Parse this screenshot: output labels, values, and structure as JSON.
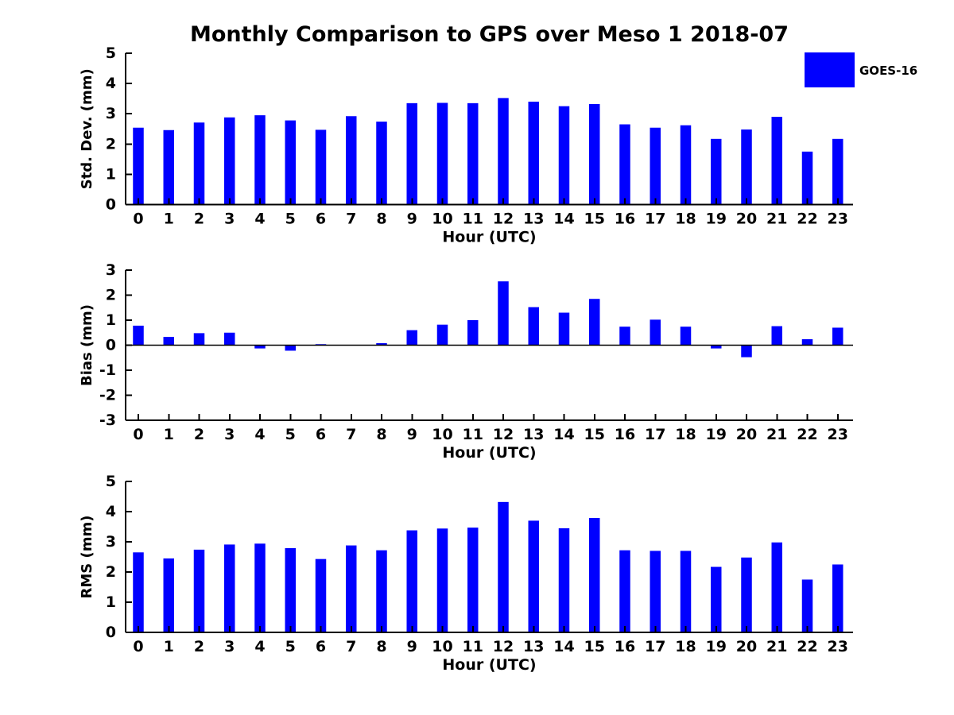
{
  "title": "Monthly Comparison to GPS over Meso 1 2018-07",
  "legend": {
    "label": "GOES-16",
    "color": "#0000ff"
  },
  "chart_data": [
    {
      "id": "std-dev",
      "type": "bar",
      "ylabel": "Std. Dev. (mm)",
      "xlabel": "Hour (UTC)",
      "ylim": [
        0,
        5
      ],
      "yticks": [
        0,
        1,
        2,
        3,
        4,
        5
      ],
      "grid": false,
      "legend_entries": [
        "GOES-16"
      ],
      "legend_position": "top-right-outside",
      "categories": [
        "0",
        "1",
        "2",
        "3",
        "4",
        "5",
        "6",
        "7",
        "8",
        "9",
        "10",
        "11",
        "12",
        "13",
        "14",
        "15",
        "16",
        "17",
        "18",
        "19",
        "20",
        "21",
        "22",
        "23"
      ],
      "series": [
        {
          "name": "GOES-16",
          "color": "#0000ff",
          "values": [
            2.54,
            2.46,
            2.71,
            2.88,
            2.95,
            2.78,
            2.47,
            2.92,
            2.74,
            3.35,
            3.36,
            3.35,
            3.52,
            3.4,
            3.25,
            3.32,
            2.65,
            2.54,
            2.62,
            2.17,
            2.48,
            2.9,
            1.75,
            2.17
          ]
        }
      ]
    },
    {
      "id": "bias",
      "type": "bar",
      "ylabel": "Bias (mm)",
      "xlabel": "Hour (UTC)",
      "ylim": [
        -3,
        3
      ],
      "yticks": [
        -3,
        -2,
        -1,
        0,
        1,
        2,
        3
      ],
      "grid": false,
      "zero_line": true,
      "categories": [
        "0",
        "1",
        "2",
        "3",
        "4",
        "5",
        "6",
        "7",
        "8",
        "9",
        "10",
        "11",
        "12",
        "13",
        "14",
        "15",
        "16",
        "17",
        "18",
        "19",
        "20",
        "21",
        "22",
        "23"
      ],
      "series": [
        {
          "name": "GOES-16",
          "color": "#0000ff",
          "values": [
            0.78,
            0.33,
            0.48,
            0.5,
            -0.13,
            -0.22,
            0.04,
            0.0,
            0.08,
            0.6,
            0.82,
            1.0,
            2.55,
            1.52,
            1.3,
            1.85,
            0.74,
            1.02,
            0.74,
            -0.13,
            -0.48,
            0.76,
            0.24,
            0.7
          ]
        }
      ]
    },
    {
      "id": "rms",
      "type": "bar",
      "ylabel": "RMS (mm)",
      "xlabel": "Hour (UTC)",
      "ylim": [
        0,
        5
      ],
      "yticks": [
        0,
        1,
        2,
        3,
        4,
        5
      ],
      "grid": false,
      "categories": [
        "0",
        "1",
        "2",
        "3",
        "4",
        "5",
        "6",
        "7",
        "8",
        "9",
        "10",
        "11",
        "12",
        "13",
        "14",
        "15",
        "16",
        "17",
        "18",
        "19",
        "20",
        "21",
        "22",
        "23"
      ],
      "series": [
        {
          "name": "GOES-16",
          "color": "#0000ff",
          "values": [
            2.65,
            2.45,
            2.74,
            2.91,
            2.94,
            2.79,
            2.43,
            2.88,
            2.72,
            3.38,
            3.44,
            3.47,
            4.32,
            3.7,
            3.45,
            3.79,
            2.72,
            2.7,
            2.7,
            2.17,
            2.48,
            2.98,
            1.75,
            2.25
          ]
        }
      ]
    }
  ]
}
